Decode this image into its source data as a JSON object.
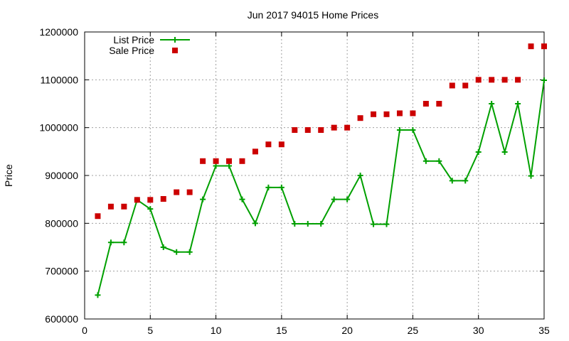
{
  "chart_data": {
    "type": "line",
    "title": "Jun 2017 94015 Home Prices",
    "xlabel": "",
    "ylabel": "Price",
    "xlim": [
      0,
      35
    ],
    "ylim": [
      600000,
      1200000
    ],
    "xticks": [
      0,
      5,
      10,
      15,
      20,
      25,
      30,
      35
    ],
    "yticks": [
      600000,
      700000,
      800000,
      900000,
      1000000,
      1100000,
      1200000
    ],
    "grid": true,
    "legend_position": "top-left",
    "x": [
      1,
      2,
      3,
      4,
      5,
      6,
      7,
      8,
      9,
      10,
      11,
      12,
      13,
      14,
      15,
      16,
      17,
      18,
      19,
      20,
      21,
      22,
      23,
      24,
      25,
      26,
      27,
      28,
      29,
      30,
      31,
      32,
      33,
      34,
      35
    ],
    "series": [
      {
        "name": "List Price",
        "style": "linespoints",
        "color": "#00a000",
        "values": [
          650000,
          760000,
          760000,
          849000,
          830000,
          750000,
          740000,
          740000,
          850000,
          920000,
          920000,
          850000,
          800000,
          875000,
          875000,
          799000,
          799000,
          799000,
          850000,
          850000,
          900000,
          798000,
          798000,
          995000,
          995000,
          930000,
          930000,
          889000,
          889000,
          949000,
          1050000,
          949000,
          1050000,
          899000,
          1099000
        ]
      },
      {
        "name": "Sale Price",
        "style": "points",
        "color": "#cc0000",
        "values": [
          815000,
          835000,
          835000,
          849000,
          849000,
          851000,
          865000,
          865000,
          930000,
          930000,
          930000,
          930000,
          950000,
          965000,
          965000,
          995000,
          995000,
          995000,
          1000000,
          1000000,
          1020000,
          1028000,
          1028000,
          1030000,
          1030000,
          1050000,
          1050000,
          1088000,
          1088000,
          1100000,
          1100000,
          1100000,
          1100000,
          1170000,
          1170000
        ]
      }
    ]
  }
}
